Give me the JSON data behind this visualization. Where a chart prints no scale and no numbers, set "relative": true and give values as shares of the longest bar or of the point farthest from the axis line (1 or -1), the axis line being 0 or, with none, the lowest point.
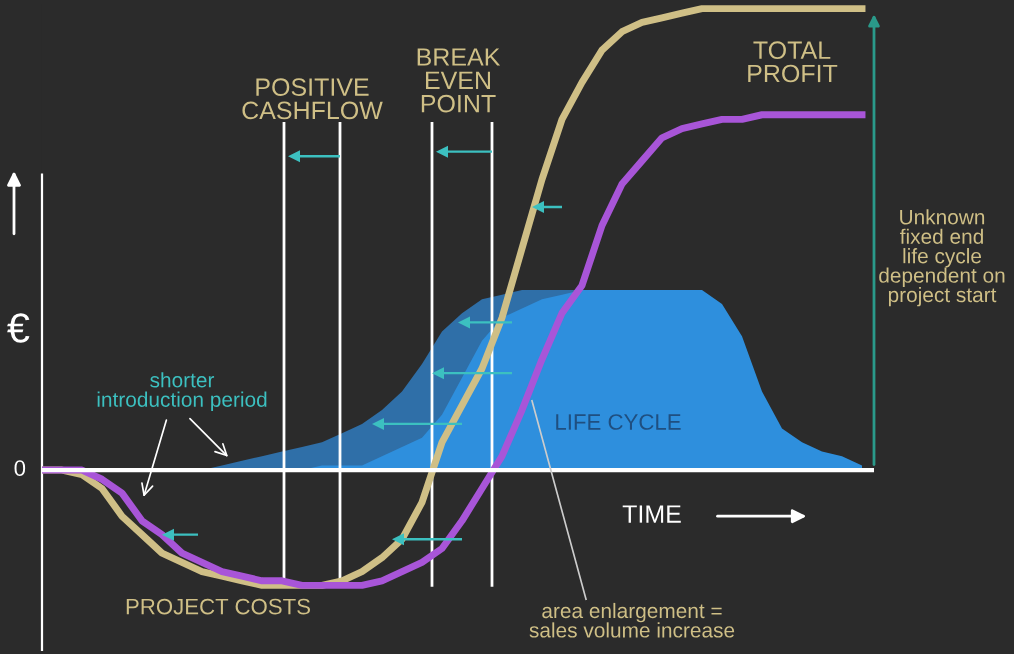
{
  "chart_data": {
    "type": "line",
    "relative": true,
    "legend": false,
    "ylabel": "€",
    "xlabel": "TIME",
    "categories": [
      null,
      null,
      null,
      null,
      null,
      null,
      null,
      null,
      null,
      null,
      null,
      null,
      null,
      null,
      null,
      null,
      null,
      null,
      null,
      null,
      null,
      null,
      null,
      null,
      null,
      null,
      null,
      null,
      null,
      null,
      null,
      null,
      null,
      null,
      null,
      null,
      null,
      null,
      null,
      null,
      null,
      null
    ],
    "series": [
      {
        "type": "area",
        "color": "#2f6fa8",
        "values": [
          null,
          null,
          null,
          null,
          null,
          null,
          null,
          null,
          0,
          0.01,
          0.02,
          0.03,
          0.04,
          0.05,
          0.06,
          0.08,
          0.1,
          0.13,
          0.17,
          0.23,
          0.3,
          0.34,
          0.37,
          0.38,
          0.39,
          0.39,
          0.39,
          0.39,
          0.39,
          null,
          null,
          null,
          null,
          null,
          null,
          null,
          null,
          null,
          null,
          null,
          null,
          null
        ]
      },
      {
        "type": "area",
        "color": "#2e8fdd",
        "values": [
          0,
          0,
          0,
          0,
          0,
          0,
          0,
          0,
          0,
          0,
          0,
          0,
          0,
          0,
          0.01,
          0.01,
          0.01,
          0.03,
          0.05,
          0.07,
          0.12,
          0.2,
          0.28,
          0.33,
          0.35,
          0.37,
          0.38,
          0.39,
          0.39,
          0.39,
          0.39,
          0.39,
          0.39,
          0.39,
          0.36,
          0.29,
          0.17,
          0.09,
          0.06,
          0.04,
          0.03,
          0.01
        ]
      },
      {
        "color": "#cfbf86",
        "values": [
          0,
          0,
          -0.01,
          -0.04,
          -0.1,
          -0.14,
          -0.18,
          -0.2,
          -0.22,
          -0.23,
          -0.24,
          -0.25,
          -0.25,
          -0.25,
          -0.25,
          -0.24,
          -0.22,
          -0.19,
          -0.15,
          -0.07,
          0.06,
          0.14,
          0.22,
          0.33,
          0.48,
          0.63,
          0.76,
          0.84,
          0.91,
          0.95,
          0.97,
          0.98,
          0.99,
          1.0,
          1.0,
          1.0,
          1.0,
          1.0,
          1.0,
          1.0,
          1.0,
          1.0
        ]
      },
      {
        "color": "#a855d8",
        "values": [
          0,
          0,
          0,
          -0.02,
          -0.05,
          -0.11,
          -0.14,
          -0.18,
          -0.2,
          -0.22,
          -0.23,
          -0.24,
          -0.24,
          -0.25,
          -0.25,
          -0.25,
          -0.25,
          -0.24,
          -0.22,
          -0.2,
          -0.17,
          -0.11,
          -0.04,
          0.03,
          0.13,
          0.24,
          0.34,
          0.4,
          0.53,
          0.62,
          0.67,
          0.72,
          0.74,
          0.75,
          0.76,
          0.76,
          0.77,
          0.77,
          0.77,
          0.77,
          0.77,
          0.77
        ]
      }
    ],
    "annotations": [
      "POSITIVE\nCASHFLOW",
      "BREAK\nEVEN\nPOINT",
      "TOTAL\nPROFIT",
      "Unknown\nfixed end\nlife cycle\ndependent on\nproject start",
      "shorter\nintroduction period",
      "LIFE CYCLE",
      "PROJECT COSTS",
      "area enlargement =\nsales volume increase",
      "0"
    ]
  }
}
